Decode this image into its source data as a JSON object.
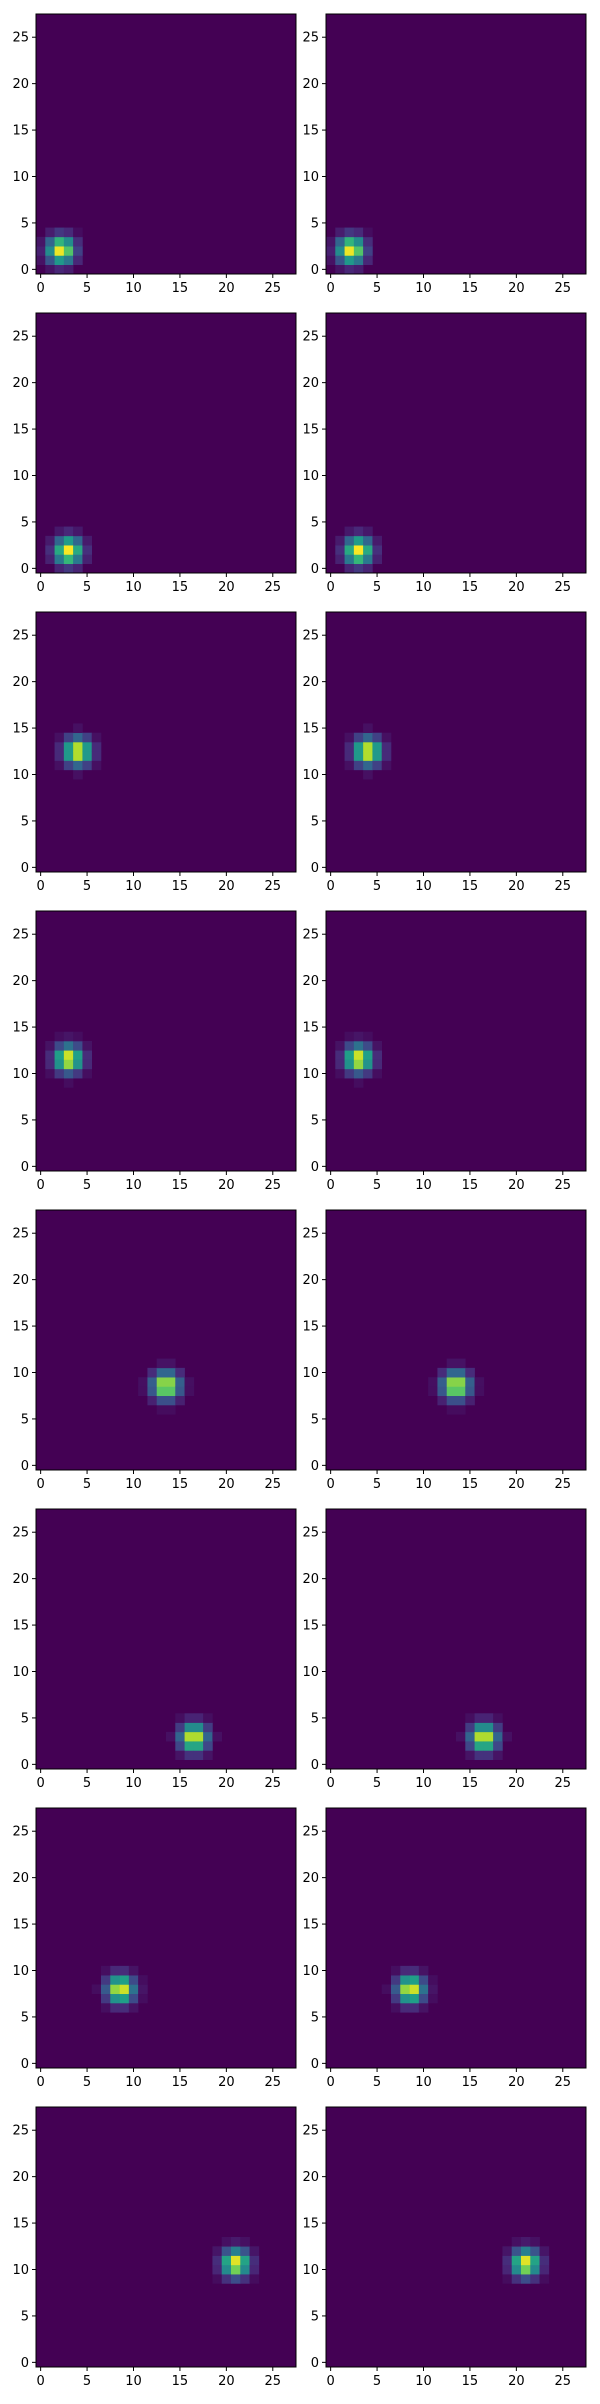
{
  "figure": {
    "rows": 8,
    "cols": 2,
    "colormap": [
      "#440154",
      "#482878",
      "#3e4989",
      "#31688e",
      "#26828e",
      "#1f9e89",
      "#35b779",
      "#6ece58",
      "#b5de2b",
      "#fde725"
    ],
    "background_color": "#440154"
  },
  "chart_data": [
    {
      "type": "heatmap",
      "panel": "r1c1",
      "grid_size": 28,
      "x_ticks": [
        0,
        5,
        10,
        15,
        20,
        25
      ],
      "y_ticks": [
        0,
        5,
        10,
        15,
        20,
        25
      ],
      "xlim": [
        -0.5,
        27.5
      ],
      "ylim": [
        -0.5,
        27.5
      ],
      "origin": "lower",
      "peak": {
        "x": 2.2,
        "y": 2.1
      },
      "sigma": 1.0
    },
    {
      "type": "heatmap",
      "panel": "r1c2",
      "grid_size": 28,
      "x_ticks": [
        0,
        5,
        10,
        15,
        20,
        25
      ],
      "y_ticks": [
        0,
        5,
        10,
        15,
        20,
        25
      ],
      "xlim": [
        -0.5,
        27.5
      ],
      "ylim": [
        -0.5,
        27.5
      ],
      "origin": "lower",
      "peak": {
        "x": 2.2,
        "y": 2.1
      },
      "sigma": 1.0
    },
    {
      "type": "heatmap",
      "panel": "r2c1",
      "grid_size": 28,
      "x_ticks": [
        0,
        5,
        10,
        15,
        20,
        25
      ],
      "y_ticks": [
        0,
        5,
        10,
        15,
        20,
        25
      ],
      "xlim": [
        -0.5,
        27.5
      ],
      "ylim": [
        -0.5,
        27.5
      ],
      "origin": "lower",
      "peak": {
        "x": 3.0,
        "y": 1.9
      },
      "sigma": 1.0
    },
    {
      "type": "heatmap",
      "panel": "r2c2",
      "grid_size": 28,
      "x_ticks": [
        0,
        5,
        10,
        15,
        20,
        25
      ],
      "y_ticks": [
        0,
        5,
        10,
        15,
        20,
        25
      ],
      "xlim": [
        -0.5,
        27.5
      ],
      "ylim": [
        -0.5,
        27.5
      ],
      "origin": "lower",
      "peak": {
        "x": 3.0,
        "y": 1.9
      },
      "sigma": 1.0
    },
    {
      "type": "heatmap",
      "panel": "r3c1",
      "grid_size": 28,
      "x_ticks": [
        0,
        5,
        10,
        15,
        20,
        25
      ],
      "y_ticks": [
        0,
        5,
        10,
        15,
        20,
        25
      ],
      "xlim": [
        -0.5,
        27.5
      ],
      "ylim": [
        -0.5,
        27.5
      ],
      "origin": "lower",
      "peak": {
        "x": 4.0,
        "y": 12.5
      },
      "sigma": 1.0
    },
    {
      "type": "heatmap",
      "panel": "r3c2",
      "grid_size": 28,
      "x_ticks": [
        0,
        5,
        10,
        15,
        20,
        25
      ],
      "y_ticks": [
        0,
        5,
        10,
        15,
        20,
        25
      ],
      "xlim": [
        -0.5,
        27.5
      ],
      "ylim": [
        -0.5,
        27.5
      ],
      "origin": "lower",
      "peak": {
        "x": 4.0,
        "y": 12.5
      },
      "sigma": 1.0
    },
    {
      "type": "heatmap",
      "panel": "r4c1",
      "grid_size": 28,
      "x_ticks": [
        0,
        5,
        10,
        15,
        20,
        25
      ],
      "y_ticks": [
        0,
        5,
        10,
        15,
        20,
        25
      ],
      "xlim": [
        -0.5,
        27.5
      ],
      "ylim": [
        -0.5,
        27.5
      ],
      "origin": "lower",
      "peak": {
        "x": 3.0,
        "y": 11.6
      },
      "sigma": 1.0
    },
    {
      "type": "heatmap",
      "panel": "r4c2",
      "grid_size": 28,
      "x_ticks": [
        0,
        5,
        10,
        15,
        20,
        25
      ],
      "y_ticks": [
        0,
        5,
        10,
        15,
        20,
        25
      ],
      "xlim": [
        -0.5,
        27.5
      ],
      "ylim": [
        -0.5,
        27.5
      ],
      "origin": "lower",
      "peak": {
        "x": 3.0,
        "y": 11.6
      },
      "sigma": 1.0
    },
    {
      "type": "heatmap",
      "panel": "r5c1",
      "grid_size": 28,
      "x_ticks": [
        0,
        5,
        10,
        15,
        20,
        25
      ],
      "y_ticks": [
        0,
        5,
        10,
        15,
        20,
        25
      ],
      "xlim": [
        -0.5,
        27.5
      ],
      "ylim": [
        -0.5,
        27.5
      ],
      "origin": "lower",
      "peak": {
        "x": 13.5,
        "y": 8.6
      },
      "sigma": 1.0
    },
    {
      "type": "heatmap",
      "panel": "r5c2",
      "grid_size": 28,
      "x_ticks": [
        0,
        5,
        10,
        15,
        20,
        25
      ],
      "y_ticks": [
        0,
        5,
        10,
        15,
        20,
        25
      ],
      "xlim": [
        -0.5,
        27.5
      ],
      "ylim": [
        -0.5,
        27.5
      ],
      "origin": "lower",
      "peak": {
        "x": 13.5,
        "y": 8.6
      },
      "sigma": 1.0
    },
    {
      "type": "heatmap",
      "panel": "r6c1",
      "grid_size": 28,
      "x_ticks": [
        0,
        5,
        10,
        15,
        20,
        25
      ],
      "y_ticks": [
        0,
        5,
        10,
        15,
        20,
        25
      ],
      "xlim": [
        -0.5,
        27.5
      ],
      "ylim": [
        -0.5,
        27.5
      ],
      "origin": "lower",
      "peak": {
        "x": 16.5,
        "y": 2.9
      },
      "sigma": 1.0
    },
    {
      "type": "heatmap",
      "panel": "r6c2",
      "grid_size": 28,
      "x_ticks": [
        0,
        5,
        10,
        15,
        20,
        25
      ],
      "y_ticks": [
        0,
        5,
        10,
        15,
        20,
        25
      ],
      "xlim": [
        -0.5,
        27.5
      ],
      "ylim": [
        -0.5,
        27.5
      ],
      "origin": "lower",
      "peak": {
        "x": 16.5,
        "y": 2.9
      },
      "sigma": 1.0
    },
    {
      "type": "heatmap",
      "panel": "r7c1",
      "grid_size": 28,
      "x_ticks": [
        0,
        5,
        10,
        15,
        20,
        25
      ],
      "y_ticks": [
        0,
        5,
        10,
        15,
        20,
        25
      ],
      "xlim": [
        -0.5,
        27.5
      ],
      "ylim": [
        -0.5,
        27.5
      ],
      "origin": "lower",
      "peak": {
        "x": 8.6,
        "y": 8.0
      },
      "sigma": 1.0
    },
    {
      "type": "heatmap",
      "panel": "r7c2",
      "grid_size": 28,
      "x_ticks": [
        0,
        5,
        10,
        15,
        20,
        25
      ],
      "y_ticks": [
        0,
        5,
        10,
        15,
        20,
        25
      ],
      "xlim": [
        -0.5,
        27.5
      ],
      "ylim": [
        -0.5,
        27.5
      ],
      "origin": "lower",
      "peak": {
        "x": 8.6,
        "y": 8.0
      },
      "sigma": 1.0
    },
    {
      "type": "heatmap",
      "panel": "r8c1",
      "grid_size": 28,
      "x_ticks": [
        0,
        5,
        10,
        15,
        20,
        25
      ],
      "y_ticks": [
        0,
        5,
        10,
        15,
        20,
        25
      ],
      "xlim": [
        -0.5,
        27.5
      ],
      "ylim": [
        -0.5,
        27.5
      ],
      "origin": "lower",
      "peak": {
        "x": 21.0,
        "y": 10.7
      },
      "sigma": 1.0
    },
    {
      "type": "heatmap",
      "panel": "r8c2",
      "grid_size": 28,
      "x_ticks": [
        0,
        5,
        10,
        15,
        20,
        25
      ],
      "y_ticks": [
        0,
        5,
        10,
        15,
        20,
        25
      ],
      "xlim": [
        -0.5,
        27.5
      ],
      "ylim": [
        -0.5,
        27.5
      ],
      "origin": "lower",
      "peak": {
        "x": 21.0,
        "y": 10.7
      },
      "sigma": 1.0
    }
  ]
}
